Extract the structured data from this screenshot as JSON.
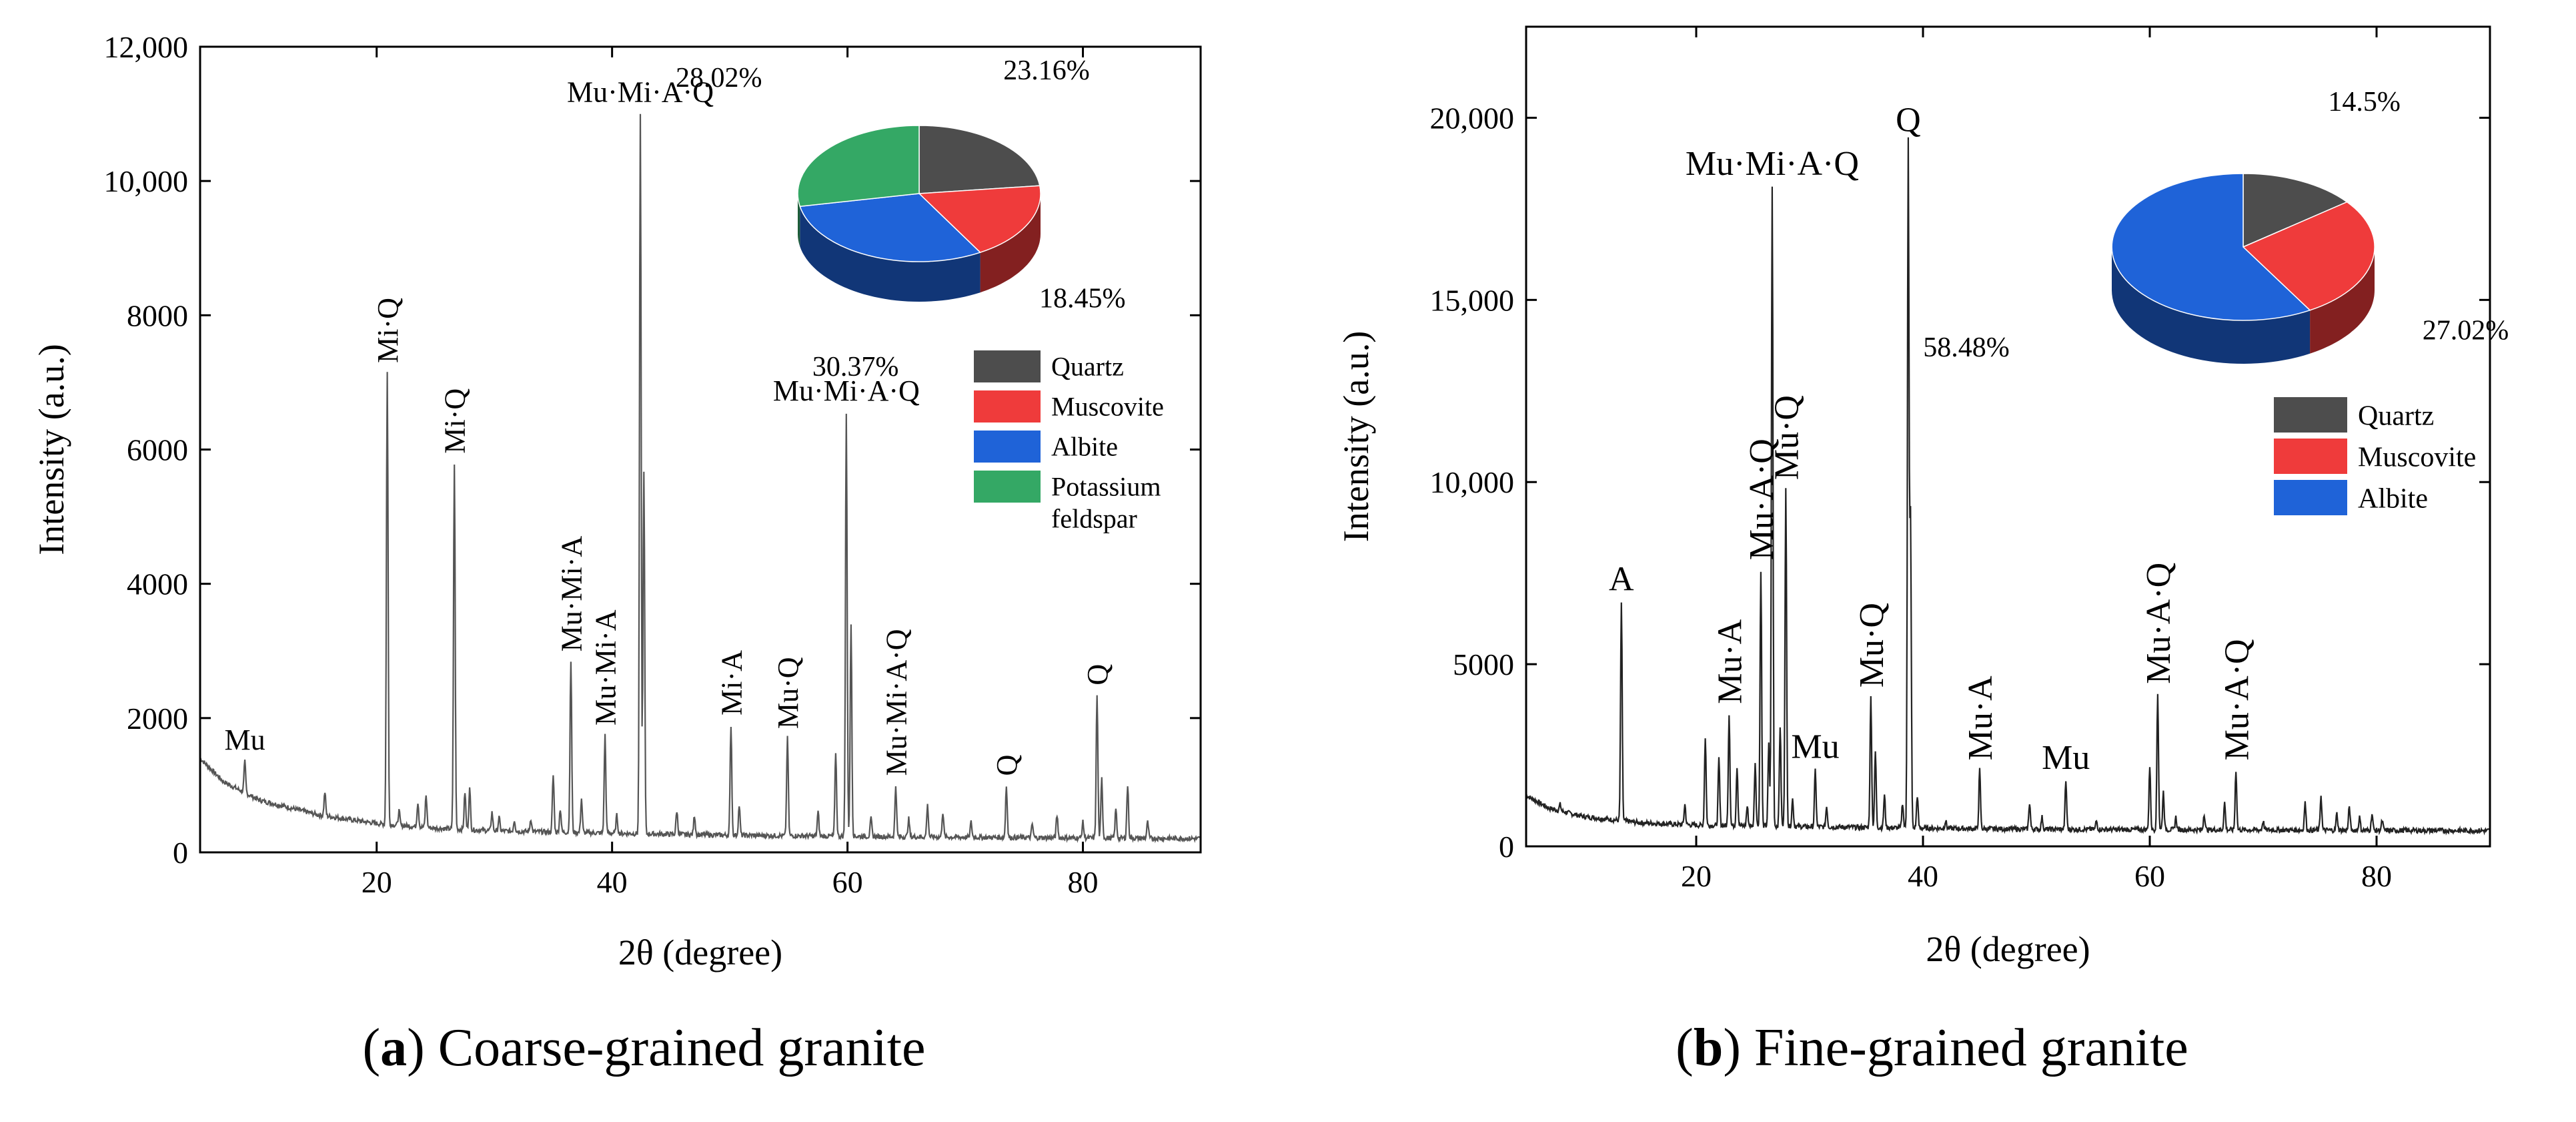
{
  "chart_data": [
    {
      "type": "line",
      "caption_letter": "a",
      "caption_text": "Coarse-grained granite",
      "xlabel": "2θ (degree)",
      "ylabel": "Intensity (a.u.)",
      "xlim": [
        5,
        90
      ],
      "ylim": [
        0,
        12000
      ],
      "x_ticks": [
        20,
        40,
        60,
        80
      ],
      "x_tick_labels": [
        "20",
        "40",
        "60",
        "80"
      ],
      "y_ticks": [
        0,
        2000,
        4000,
        6000,
        8000,
        10000,
        12000
      ],
      "y_tick_labels": [
        "0",
        "2000",
        "4000",
        "6000",
        "8000",
        "10,000",
        "12,000"
      ],
      "series": [
        {
          "color": "#555555",
          "baseline": [
            [
              5,
              1400
            ],
            [
              7,
              1050
            ],
            [
              10,
              780
            ],
            [
              15,
              560
            ],
            [
              20,
              430
            ],
            [
              25,
              360
            ],
            [
              30,
              320
            ],
            [
              40,
              285
            ],
            [
              50,
              255
            ],
            [
              60,
              240
            ],
            [
              70,
              225
            ],
            [
              80,
              215
            ],
            [
              90,
              205
            ]
          ],
          "peaks": [
            [
              8.8,
              1350
            ],
            [
              15.6,
              900
            ],
            [
              20.9,
              7150
            ],
            [
              21.9,
              620
            ],
            [
              23.5,
              750
            ],
            [
              24.2,
              850
            ],
            [
              26.6,
              5800
            ],
            [
              27.5,
              900
            ],
            [
              27.9,
              950
            ],
            [
              29.8,
              600
            ],
            [
              30.4,
              520
            ],
            [
              31.7,
              480
            ],
            [
              33.1,
              500
            ],
            [
              35.0,
              1150
            ],
            [
              35.6,
              650
            ],
            [
              36.5,
              2850
            ],
            [
              37.4,
              800
            ],
            [
              39.4,
              1750
            ],
            [
              40.4,
              550
            ],
            [
              42.4,
              11000
            ],
            [
              42.7,
              5700
            ],
            [
              45.5,
              620
            ],
            [
              47.0,
              550
            ],
            [
              50.1,
              1900
            ],
            [
              50.8,
              700
            ],
            [
              54.9,
              1700
            ],
            [
              57.5,
              600
            ],
            [
              59.0,
              1500
            ],
            [
              59.9,
              6550
            ],
            [
              60.3,
              3400
            ],
            [
              62.0,
              500
            ],
            [
              64.1,
              1000
            ],
            [
              65.2,
              500
            ],
            [
              66.8,
              700
            ],
            [
              68.1,
              600
            ],
            [
              70.5,
              450
            ],
            [
              73.5,
              1000
            ],
            [
              75.7,
              420
            ],
            [
              77.8,
              550
            ],
            [
              80.0,
              450
            ],
            [
              81.2,
              2350
            ],
            [
              81.6,
              1100
            ],
            [
              82.8,
              650
            ],
            [
              83.8,
              1000
            ],
            [
              85.5,
              450
            ]
          ]
        }
      ],
      "peak_labels": [
        {
          "text": "Mu",
          "x": 8.8,
          "y": 1350,
          "orientation": "horizontal"
        },
        {
          "text": "Mi·Q",
          "x": 20.9,
          "y": 7150,
          "orientation": "vertical"
        },
        {
          "text": "Mi·Q",
          "x": 26.6,
          "y": 5800,
          "orientation": "vertical"
        },
        {
          "text": "Mu·Mi·A",
          "x": 36.5,
          "y": 2850,
          "orientation": "vertical"
        },
        {
          "text": "Mu·Mi·A",
          "x": 39.4,
          "y": 1750,
          "orientation": "vertical"
        },
        {
          "text": "Mu·Mi·A·Q",
          "x": 42.4,
          "y": 11000,
          "orientation": "horizontal"
        },
        {
          "text": "Mi·A",
          "x": 50.1,
          "y": 1900,
          "orientation": "vertical"
        },
        {
          "text": "Mu·Q",
          "x": 54.9,
          "y": 1700,
          "orientation": "vertical"
        },
        {
          "text": "Mu·Mi·A·Q",
          "x": 59.9,
          "y": 6550,
          "orientation": "horizontal"
        },
        {
          "text": "Mu·Mi·A·Q",
          "x": 64.1,
          "y": 1000,
          "orientation": "vertical"
        },
        {
          "text": "Q",
          "x": 73.5,
          "y": 1000,
          "orientation": "vertical"
        },
        {
          "text": "Q",
          "x": 81.2,
          "y": 2350,
          "orientation": "vertical"
        }
      ],
      "pie": {
        "slices": [
          {
            "name": "Quartz",
            "value": 23.16,
            "label": "23.16%",
            "color": "#4d4d4d"
          },
          {
            "name": "Muscovite",
            "value": 18.45,
            "label": "18.45%",
            "color": "#ef3b3b"
          },
          {
            "name": "Albite",
            "value": 30.37,
            "label": "30.37%",
            "color": "#1f63d8"
          },
          {
            "name": "Potassium feldspar",
            "value": 28.02,
            "label": "28.02%",
            "color": "#34a865"
          }
        ]
      },
      "legend": [
        {
          "label": "Quartz",
          "color": "#4d4d4d"
        },
        {
          "label": "Muscovite",
          "color": "#ef3b3b"
        },
        {
          "label": "Albite",
          "color": "#1f63d8"
        },
        {
          "label": "Potassium feldspar",
          "lines": [
            "Potassium",
            "feldspar"
          ],
          "color": "#34a865"
        }
      ]
    },
    {
      "type": "line",
      "caption_letter": "b",
      "caption_text": "Fine-grained granite",
      "xlabel": "2θ (degree)",
      "ylabel": "Intensity (a.u.)",
      "xlim": [
        5,
        90
      ],
      "ylim": [
        0,
        22500
      ],
      "x_ticks": [
        20,
        40,
        60,
        80
      ],
      "x_tick_labels": [
        "20",
        "40",
        "60",
        "80"
      ],
      "y_ticks": [
        0,
        5000,
        10000,
        15000,
        20000
      ],
      "y_tick_labels": [
        "0",
        "5000",
        "10,000",
        "15,000",
        "20,000"
      ],
      "series": [
        {
          "color": "#222222",
          "baseline": [
            [
              5,
              1400
            ],
            [
              7,
              1050
            ],
            [
              10,
              820
            ],
            [
              15,
              650
            ],
            [
              20,
              580
            ],
            [
              25,
              560
            ],
            [
              30,
              540
            ],
            [
              40,
              500
            ],
            [
              50,
              470
            ],
            [
              60,
              460
            ],
            [
              70,
              450
            ],
            [
              80,
              440
            ],
            [
              90,
              430
            ]
          ],
          "peaks": [
            [
              8.0,
              1150
            ],
            [
              13.4,
              6700
            ],
            [
              19.0,
              1150
            ],
            [
              20.8,
              3000
            ],
            [
              22.0,
              2400
            ],
            [
              22.9,
              3650
            ],
            [
              23.6,
              2200
            ],
            [
              24.5,
              1100
            ],
            [
              25.2,
              2300
            ],
            [
              25.7,
              7600
            ],
            [
              26.4,
              2800
            ],
            [
              26.7,
              18100
            ],
            [
              27.4,
              3300
            ],
            [
              27.9,
              9800
            ],
            [
              28.5,
              1300
            ],
            [
              30.5,
              2100
            ],
            [
              31.5,
              1100
            ],
            [
              35.4,
              4100
            ],
            [
              35.8,
              2600
            ],
            [
              36.6,
              1400
            ],
            [
              38.2,
              1200
            ],
            [
              38.7,
              19300
            ],
            [
              38.9,
              9000
            ],
            [
              39.5,
              1400
            ],
            [
              42.0,
              700
            ],
            [
              45.0,
              2100
            ],
            [
              49.4,
              1200
            ],
            [
              50.5,
              800
            ],
            [
              52.6,
              1800
            ],
            [
              55.3,
              700
            ],
            [
              60.0,
              2200
            ],
            [
              60.7,
              4200
            ],
            [
              61.2,
              1500
            ],
            [
              62.3,
              800
            ],
            [
              64.8,
              900
            ],
            [
              66.6,
              1200
            ],
            [
              67.6,
              2100
            ],
            [
              70.0,
              700
            ],
            [
              73.7,
              1200
            ],
            [
              75.1,
              1400
            ],
            [
              76.5,
              900
            ],
            [
              77.6,
              1100
            ],
            [
              78.5,
              800
            ],
            [
              79.6,
              900
            ],
            [
              80.5,
              700
            ]
          ]
        }
      ],
      "peak_labels": [
        {
          "text": "A",
          "x": 13.4,
          "y": 6700,
          "orientation": "horizontal"
        },
        {
          "text": "Mu·A",
          "x": 22.9,
          "y": 3650,
          "orientation": "vertical"
        },
        {
          "text": "Mu·A·Q",
          "x": 25.7,
          "y": 7600,
          "orientation": "vertical"
        },
        {
          "text": "Mu·Mi·A·Q",
          "x": 26.7,
          "y": 18100,
          "orientation": "horizontal"
        },
        {
          "text": "Mu·Q",
          "x": 27.9,
          "y": 9800,
          "orientation": "vertical"
        },
        {
          "text": "Mu",
          "x": 30.5,
          "y": 2100,
          "orientation": "horizontal"
        },
        {
          "text": "Mu·Q",
          "x": 35.4,
          "y": 4100,
          "orientation": "vertical"
        },
        {
          "text": "Q",
          "x": 38.7,
          "y": 19300,
          "orientation": "horizontal"
        },
        {
          "text": "Mu·A",
          "x": 45.0,
          "y": 2100,
          "orientation": "vertical"
        },
        {
          "text": "Mu",
          "x": 52.6,
          "y": 1800,
          "orientation": "horizontal"
        },
        {
          "text": "Mu·A·Q",
          "x": 60.7,
          "y": 4200,
          "orientation": "vertical"
        },
        {
          "text": "Mu·A·Q",
          "x": 67.6,
          "y": 2100,
          "orientation": "vertical"
        }
      ],
      "pie": {
        "slices": [
          {
            "name": "Quartz",
            "value": 14.5,
            "label": "14.5%",
            "color": "#4d4d4d"
          },
          {
            "name": "Muscovite",
            "value": 27.02,
            "label": "27.02%",
            "color": "#ef3b3b"
          },
          {
            "name": "Albite",
            "value": 58.48,
            "label": "58.48%",
            "color": "#1f63d8"
          }
        ]
      },
      "legend": [
        {
          "label": "Quartz",
          "color": "#4d4d4d"
        },
        {
          "label": "Muscovite",
          "color": "#ef3b3b"
        },
        {
          "label": "Albite",
          "color": "#1f63d8"
        }
      ]
    }
  ]
}
